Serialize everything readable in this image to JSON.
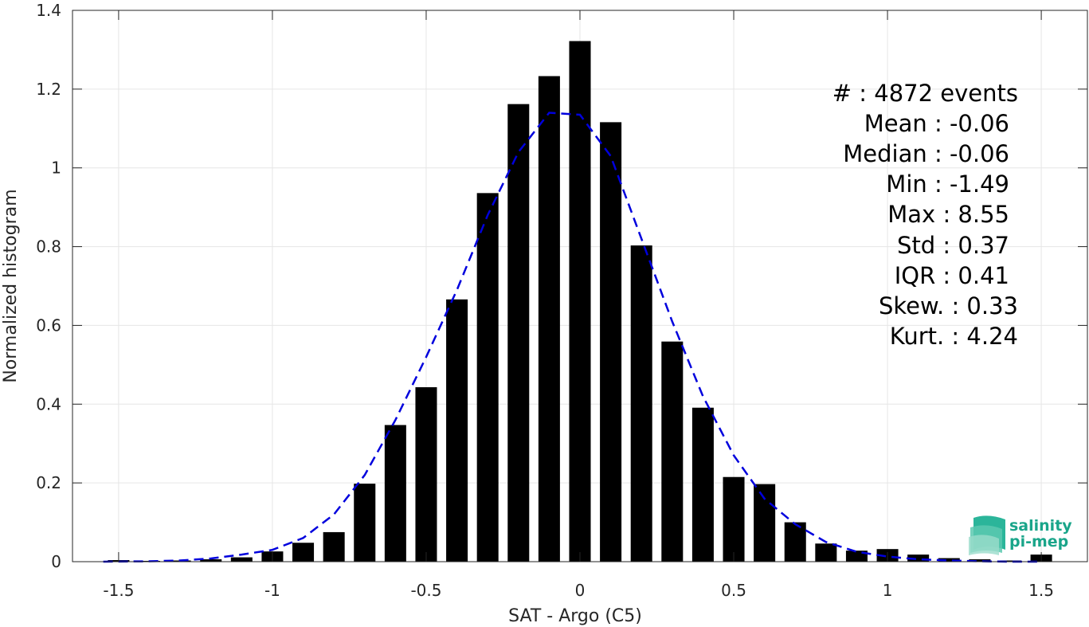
{
  "chart_data": {
    "type": "bar",
    "xlabel": "SAT - Argo (C5)",
    "ylabel": "Normalized histogram",
    "xlim": [
      -1.65,
      1.65
    ],
    "ylim": [
      0,
      1.4
    ],
    "xticks": [
      -1.5,
      -1,
      -0.5,
      0,
      0.5,
      1,
      1.5
    ],
    "xtick_labels": [
      "-1.5",
      "-1",
      "-0.5",
      "0",
      "0.5",
      "1",
      "1.5"
    ],
    "yticks": [
      0,
      0.2,
      0.4,
      0.6,
      0.8,
      1,
      1.2,
      1.4
    ],
    "ytick_labels": [
      "0",
      "0.2",
      "0.4",
      "0.6",
      "0.8",
      "1",
      "1.2",
      "1.4"
    ],
    "grid": true,
    "bar_color": "#000000",
    "bars": {
      "centers": [
        -1.5,
        -1.4,
        -1.3,
        -1.2,
        -1.1,
        -1.0,
        -0.9,
        -0.8,
        -0.7,
        -0.6,
        -0.5,
        -0.4,
        -0.3,
        -0.2,
        -0.1,
        0.0,
        0.1,
        0.2,
        0.3,
        0.4,
        0.5,
        0.6,
        0.7,
        0.8,
        0.9,
        1.0,
        1.1,
        1.2,
        1.3,
        1.4,
        1.5
      ],
      "values": [
        0.004,
        0.002,
        0.003,
        0.006,
        0.011,
        0.026,
        0.048,
        0.075,
        0.198,
        0.347,
        0.443,
        0.666,
        0.936,
        1.162,
        1.233,
        1.322,
        1.116,
        0.803,
        0.559,
        0.391,
        0.215,
        0.197,
        0.1,
        0.046,
        0.028,
        0.032,
        0.018,
        0.009,
        0.006,
        0.003,
        0.018
      ],
      "width": 0.07
    },
    "fit_curve": {
      "style": "dashed",
      "color": "#0000dd",
      "x": [
        -1.55,
        -1.4,
        -1.3,
        -1.2,
        -1.1,
        -1.0,
        -0.9,
        -0.8,
        -0.7,
        -0.6,
        -0.5,
        -0.4,
        -0.3,
        -0.2,
        -0.1,
        0.0,
        0.1,
        0.2,
        0.3,
        0.4,
        0.5,
        0.6,
        0.7,
        0.8,
        0.9,
        1.0,
        1.1,
        1.2,
        1.3,
        1.4,
        1.5
      ],
      "y": [
        0.0,
        0.001,
        0.003,
        0.008,
        0.018,
        0.03,
        0.06,
        0.12,
        0.22,
        0.36,
        0.52,
        0.69,
        0.88,
        1.04,
        1.14,
        1.135,
        1.03,
        0.82,
        0.61,
        0.42,
        0.27,
        0.16,
        0.095,
        0.05,
        0.025,
        0.013,
        0.006,
        0.003,
        0.001,
        0.0,
        0.0
      ]
    },
    "annotations": [
      "#  : 4872 events",
      "Mean : -0.06",
      "Median : -0.06",
      "Min : -1.49",
      "Max : 8.55",
      "Std : 0.37",
      "IQR : 0.41",
      "Skew. : 0.33",
      "Kurt. : 4.24"
    ]
  },
  "logo": {
    "line1": "salinity",
    "line2": "pi-mep",
    "color": "#1aa58a"
  }
}
